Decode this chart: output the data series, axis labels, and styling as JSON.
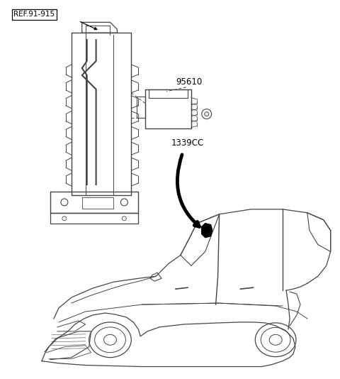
{
  "bg_color": "#ffffff",
  "line_color": "#444444",
  "dark_color": "#000000",
  "ref_label": "REF.91-915",
  "part_label_1": "95610",
  "part_label_2": "1339CC",
  "fig_width": 4.8,
  "fig_height": 5.34,
  "dpi": 100
}
